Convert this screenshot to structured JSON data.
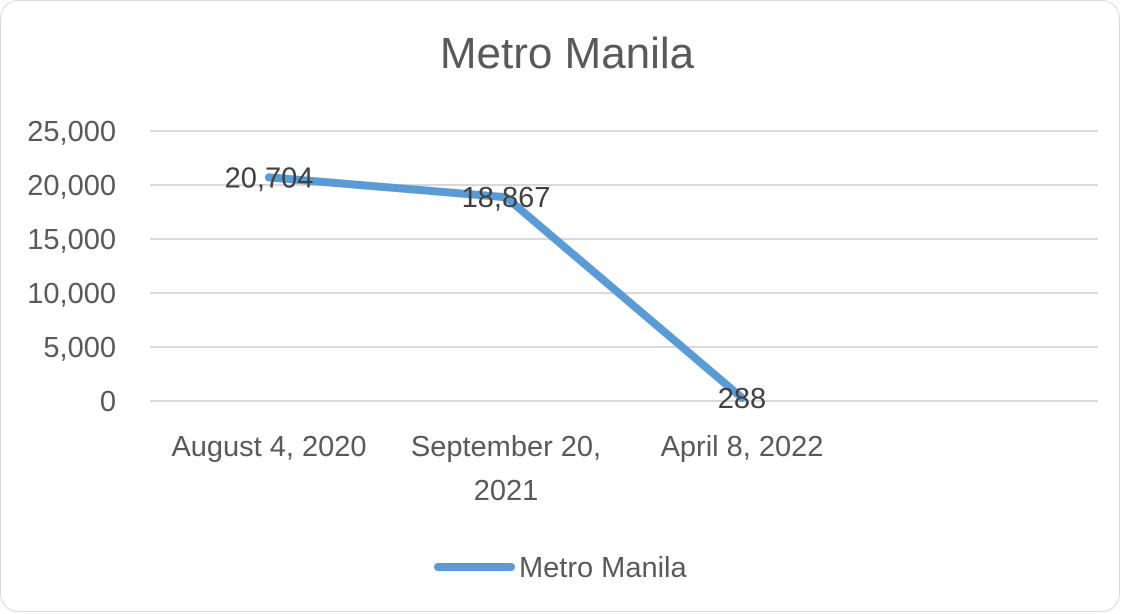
{
  "chart_data": {
    "type": "line",
    "title": "Metro Manila",
    "categories": [
      "August 4, 2020",
      "September 20, 2021",
      "April 8, 2022"
    ],
    "series": [
      {
        "name": "Metro Manila",
        "values": [
          20704,
          18867,
          288
        ],
        "data_labels": [
          "20,704",
          "18,867",
          "288"
        ]
      }
    ],
    "ylim": [
      0,
      25000
    ],
    "yticks": [
      0,
      5000,
      10000,
      15000,
      20000,
      25000
    ],
    "ytick_labels": [
      "0",
      "5,000",
      "10,000",
      "15,000",
      "20,000",
      "25,000"
    ],
    "xtick_lines": [
      [
        "August 4, 2020"
      ],
      [
        "September 20,",
        "2021"
      ],
      [
        "April 8, 2022"
      ]
    ],
    "grid": true,
    "legend_position": "bottom",
    "colors": {
      "series": "#5b9bd5",
      "grid": "#d9d9d9",
      "text": "#595959"
    }
  }
}
